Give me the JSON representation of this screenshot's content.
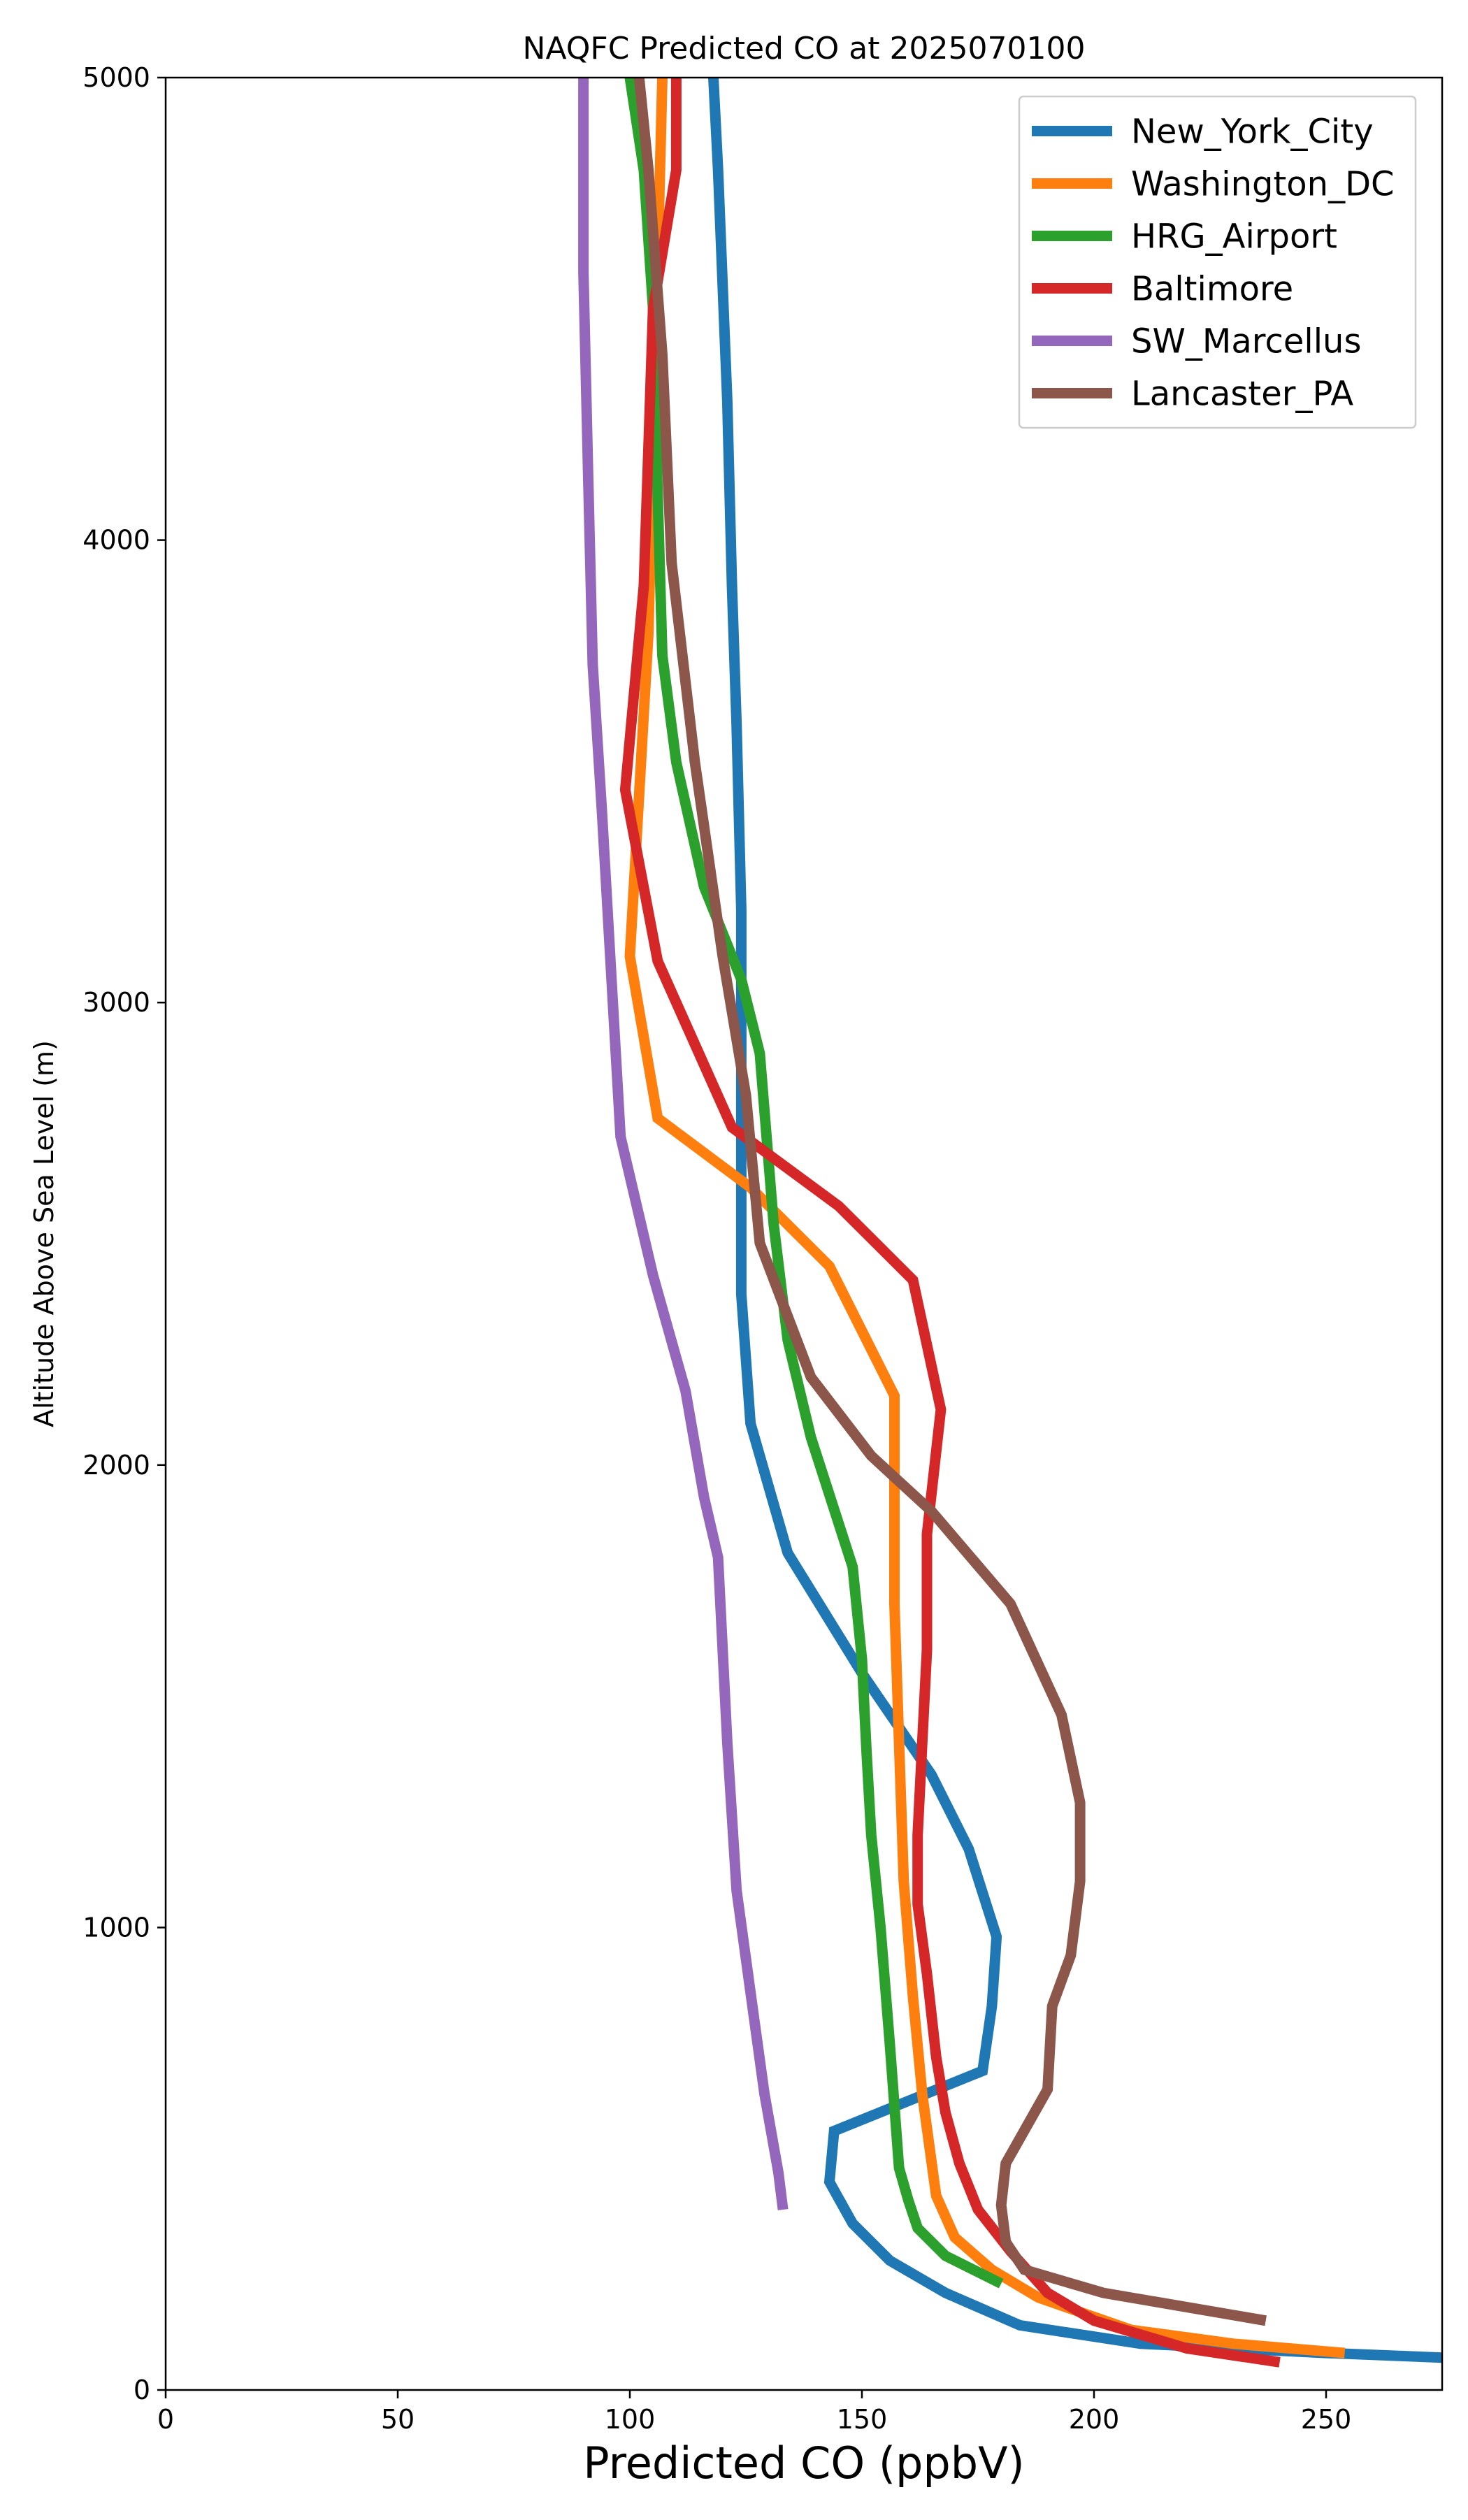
{
  "chart_data": {
    "type": "line",
    "title": "NAQFC Predicted CO at 2025070100",
    "xlabel": "Predicted CO (ppbV)",
    "ylabel": "Altitude Above Sea Level (m)",
    "xlim": [
      0,
      275
    ],
    "ylim": [
      0,
      5000
    ],
    "xticks": [
      0,
      50,
      100,
      150,
      200,
      250
    ],
    "yticks": [
      0,
      1000,
      2000,
      3000,
      4000,
      5000
    ],
    "grid": false,
    "legend_position": "top-right",
    "series": [
      {
        "name": "New_York_City",
        "color": "#1f77b4",
        "points": [
          [
            275,
            70
          ],
          [
            250,
            80
          ],
          [
            230,
            90
          ],
          [
            210,
            100
          ],
          [
            184,
            140
          ],
          [
            168,
            210
          ],
          [
            156,
            280
          ],
          [
            148,
            360
          ],
          [
            143,
            450
          ],
          [
            144,
            560
          ],
          [
            176,
            690
          ],
          [
            178,
            830
          ],
          [
            179,
            980
          ],
          [
            173,
            1170
          ],
          [
            165,
            1330
          ],
          [
            150,
            1550
          ],
          [
            134,
            1810
          ],
          [
            126,
            2090
          ],
          [
            124,
            2370
          ],
          [
            124,
            2700
          ],
          [
            124,
            3200
          ],
          [
            123,
            3600
          ],
          [
            122,
            3900
          ],
          [
            121,
            4300
          ],
          [
            119,
            4800
          ],
          [
            118,
            5000
          ]
        ]
      },
      {
        "name": "Washington_DC",
        "color": "#ff7f0e",
        "points": [
          [
            254,
            80
          ],
          [
            230,
            100
          ],
          [
            208,
            130
          ],
          [
            188,
            200
          ],
          [
            178,
            260
          ],
          [
            170,
            330
          ],
          [
            166,
            420
          ],
          [
            163,
            640
          ],
          [
            161,
            850
          ],
          [
            159,
            1100
          ],
          [
            158,
            1400
          ],
          [
            157,
            1700
          ],
          [
            157,
            2150
          ],
          [
            143,
            2430
          ],
          [
            126,
            2600
          ],
          [
            106,
            2750
          ],
          [
            100,
            3100
          ],
          [
            102,
            3450
          ],
          [
            104,
            3800
          ],
          [
            105,
            4200
          ],
          [
            106,
            4600
          ],
          [
            107,
            5000
          ]
        ]
      },
      {
        "name": "HRG_Airport",
        "color": "#2ca02c",
        "points": [
          [
            180,
            230
          ],
          [
            168,
            290
          ],
          [
            162,
            350
          ],
          [
            160,
            410
          ],
          [
            158,
            480
          ],
          [
            156,
            750
          ],
          [
            154,
            1000
          ],
          [
            152,
            1200
          ],
          [
            151,
            1380
          ],
          [
            150,
            1580
          ],
          [
            148,
            1780
          ],
          [
            139,
            2060
          ],
          [
            134,
            2270
          ],
          [
            131,
            2520
          ],
          [
            128,
            2890
          ],
          [
            124,
            3050
          ],
          [
            116,
            3250
          ],
          [
            110,
            3520
          ],
          [
            107,
            3750
          ],
          [
            106,
            4100
          ],
          [
            105,
            4500
          ],
          [
            103,
            4800
          ],
          [
            100,
            5000
          ]
        ]
      },
      {
        "name": "Baltimore",
        "color": "#d62728",
        "points": [
          [
            240,
            60
          ],
          [
            220,
            90
          ],
          [
            200,
            150
          ],
          [
            190,
            210
          ],
          [
            182,
            300
          ],
          [
            175,
            390
          ],
          [
            171,
            490
          ],
          [
            168,
            600
          ],
          [
            166,
            720
          ],
          [
            164,
            900
          ],
          [
            162,
            1050
          ],
          [
            162,
            1200
          ],
          [
            163,
            1400
          ],
          [
            164,
            1600
          ],
          [
            164,
            1850
          ],
          [
            167,
            2120
          ],
          [
            161,
            2400
          ],
          [
            145,
            2560
          ],
          [
            122,
            2730
          ],
          [
            106,
            3090
          ],
          [
            99,
            3460
          ],
          [
            103,
            3900
          ],
          [
            104,
            4200
          ],
          [
            105,
            4500
          ],
          [
            110,
            4800
          ],
          [
            110,
            5000
          ]
        ]
      },
      {
        "name": "SW_Marcellus",
        "color": "#9467bd",
        "points": [
          [
            133,
            390
          ],
          [
            132,
            470
          ],
          [
            129,
            640
          ],
          [
            126,
            860
          ],
          [
            123,
            1080
          ],
          [
            121,
            1400
          ],
          [
            119,
            1800
          ],
          [
            116,
            1930
          ],
          [
            112,
            2160
          ],
          [
            105,
            2410
          ],
          [
            98,
            2710
          ],
          [
            96,
            3060
          ],
          [
            94,
            3410
          ],
          [
            92,
            3730
          ],
          [
            91,
            4150
          ],
          [
            90,
            4580
          ],
          [
            90,
            5000
          ]
        ]
      },
      {
        "name": "Lancaster_PA",
        "color": "#8c564b",
        "points": [
          [
            237,
            150
          ],
          [
            202,
            210
          ],
          [
            185,
            260
          ],
          [
            181,
            320
          ],
          [
            180,
            400
          ],
          [
            181,
            490
          ],
          [
            190,
            650
          ],
          [
            191,
            830
          ],
          [
            195,
            940
          ],
          [
            197,
            1100
          ],
          [
            197,
            1270
          ],
          [
            193,
            1460
          ],
          [
            182,
            1700
          ],
          [
            165,
            1900
          ],
          [
            152,
            2020
          ],
          [
            139,
            2190
          ],
          [
            128,
            2480
          ],
          [
            125,
            2800
          ],
          [
            120,
            3100
          ],
          [
            114,
            3520
          ],
          [
            109,
            3950
          ],
          [
            107,
            4400
          ],
          [
            104,
            4800
          ],
          [
            102,
            5000
          ]
        ]
      }
    ]
  }
}
